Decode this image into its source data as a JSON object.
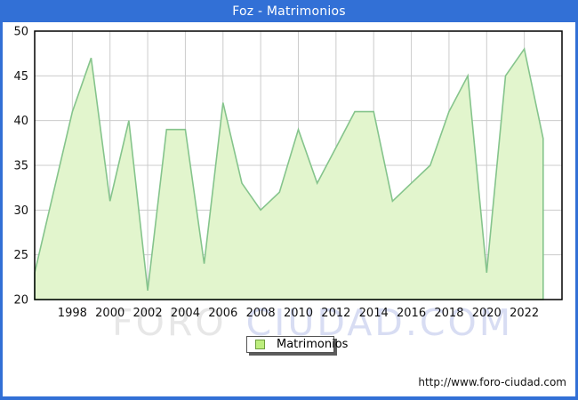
{
  "header": {
    "title": "Foz - Matrimonios"
  },
  "chart_data": {
    "type": "area",
    "title": "Foz - Matrimonios",
    "series": [
      {
        "name": "Matrimonios",
        "x": [
          1996,
          1997,
          1998,
          1999,
          2000,
          2001,
          2002,
          2003,
          2004,
          2005,
          2006,
          2007,
          2008,
          2009,
          2010,
          2011,
          2012,
          2013,
          2014,
          2015,
          2016,
          2017,
          2018,
          2019,
          2020,
          2021,
          2022,
          2023
        ],
        "values": [
          23,
          32,
          41,
          47,
          31,
          40,
          21,
          39,
          39,
          24,
          42,
          33,
          30,
          32,
          39,
          33,
          37,
          41,
          41,
          31,
          33,
          35,
          41,
          45,
          23,
          45,
          48,
          38
        ]
      }
    ],
    "xlabel": "",
    "ylabel": "",
    "xlim": [
      1996,
      2024
    ],
    "ylim": [
      20,
      50
    ],
    "yticks": [
      20,
      25,
      30,
      35,
      40,
      45,
      50
    ],
    "xticks": [
      1998,
      2000,
      2002,
      2004,
      2006,
      2008,
      2010,
      2012,
      2014,
      2016,
      2018,
      2020,
      2022
    ],
    "grid": true,
    "legend_position": "bottom",
    "colors": {
      "area_fill": "#e2f5cd",
      "line": "#85c48c",
      "grid": "#cccccc",
      "plot_border": "#000000",
      "tick_text": "#111111"
    }
  },
  "legend": {
    "label": "Matrimonios",
    "swatch_fill": "#bdee7e",
    "swatch_border": "#6f9f3f"
  },
  "watermark": {
    "part1": "FORO",
    "part2": "CIUDAD.COM"
  },
  "footer": {
    "url": "http://www.foro-ciudad.com"
  },
  "colors": {
    "titlebar": "#3270d6"
  }
}
